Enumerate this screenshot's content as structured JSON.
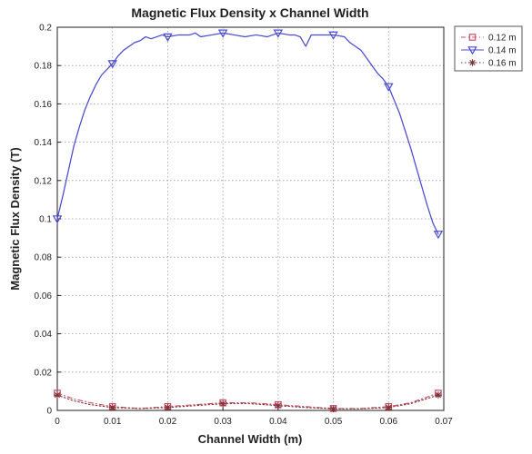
{
  "chart_data": {
    "type": "line",
    "title": "Magnetic Flux Density x Channel Width",
    "xlabel": "Channel Width (m)",
    "ylabel": "Magnetic Flux Density (T)",
    "xlim": [
      0,
      0.07
    ],
    "ylim": [
      0,
      0.2
    ],
    "x_ticks": [
      "0",
      "0.01",
      "0.02",
      "0.03",
      "0.04",
      "0.05",
      "0.06",
      "0.07"
    ],
    "y_ticks": [
      "0",
      "0.02",
      "0.04",
      "0.06",
      "0.08",
      "0.1",
      "0.12",
      "0.14",
      "0.16",
      "0.18",
      "0.2"
    ],
    "grid": true,
    "legend_position": "outside-right-top",
    "series": [
      {
        "name": "0.12 m",
        "color": "#cc4a6a",
        "style": "dash-dot",
        "marker": "square",
        "marker_x": [
          0,
          0.01,
          0.02,
          0.03,
          0.04,
          0.05,
          0.06,
          0.069
        ],
        "points": [
          [
            0,
            0.009
          ],
          [
            0.003,
            0.006
          ],
          [
            0.006,
            0.004
          ],
          [
            0.01,
            0.002
          ],
          [
            0.015,
            0.001
          ],
          [
            0.02,
            0.002
          ],
          [
            0.025,
            0.003
          ],
          [
            0.03,
            0.004
          ],
          [
            0.035,
            0.004
          ],
          [
            0.04,
            0.003
          ],
          [
            0.045,
            0.002
          ],
          [
            0.05,
            0.001
          ],
          [
            0.055,
            0.001
          ],
          [
            0.06,
            0.002
          ],
          [
            0.064,
            0.004
          ],
          [
            0.069,
            0.009
          ]
        ]
      },
      {
        "name": "0.14 m",
        "color": "#4a4ad0",
        "style": "solid",
        "marker": "triangle-down",
        "marker_x": [
          0,
          0.01,
          0.02,
          0.03,
          0.04,
          0.05,
          0.06,
          0.069
        ],
        "points": [
          [
            0,
            0.1
          ],
          [
            0.001,
            0.112
          ],
          [
            0.002,
            0.125
          ],
          [
            0.003,
            0.138
          ],
          [
            0.004,
            0.148
          ],
          [
            0.005,
            0.157
          ],
          [
            0.006,
            0.164
          ],
          [
            0.007,
            0.17
          ],
          [
            0.008,
            0.175
          ],
          [
            0.009,
            0.178
          ],
          [
            0.01,
            0.181
          ],
          [
            0.011,
            0.185
          ],
          [
            0.012,
            0.188
          ],
          [
            0.013,
            0.19
          ],
          [
            0.014,
            0.192
          ],
          [
            0.015,
            0.193
          ],
          [
            0.016,
            0.195
          ],
          [
            0.017,
            0.194
          ],
          [
            0.018,
            0.195
          ],
          [
            0.019,
            0.196
          ],
          [
            0.02,
            0.195
          ],
          [
            0.022,
            0.196
          ],
          [
            0.024,
            0.196
          ],
          [
            0.025,
            0.197
          ],
          [
            0.026,
            0.195
          ],
          [
            0.028,
            0.196
          ],
          [
            0.03,
            0.197
          ],
          [
            0.032,
            0.196
          ],
          [
            0.034,
            0.195
          ],
          [
            0.036,
            0.196
          ],
          [
            0.038,
            0.195
          ],
          [
            0.04,
            0.197
          ],
          [
            0.042,
            0.196
          ],
          [
            0.043,
            0.196
          ],
          [
            0.044,
            0.195
          ],
          [
            0.045,
            0.19
          ],
          [
            0.046,
            0.196
          ],
          [
            0.048,
            0.196
          ],
          [
            0.05,
            0.196
          ],
          [
            0.052,
            0.195
          ],
          [
            0.053,
            0.192
          ],
          [
            0.054,
            0.19
          ],
          [
            0.055,
            0.188
          ],
          [
            0.056,
            0.184
          ],
          [
            0.057,
            0.18
          ],
          [
            0.058,
            0.176
          ],
          [
            0.059,
            0.173
          ],
          [
            0.06,
            0.169
          ],
          [
            0.061,
            0.162
          ],
          [
            0.062,
            0.155
          ],
          [
            0.063,
            0.146
          ],
          [
            0.064,
            0.137
          ],
          [
            0.065,
            0.127
          ],
          [
            0.066,
            0.117
          ],
          [
            0.067,
            0.107
          ],
          [
            0.068,
            0.098
          ],
          [
            0.069,
            0.092
          ]
        ]
      },
      {
        "name": "0.16 m",
        "color": "#7a3333",
        "style": "dotted",
        "marker": "star",
        "marker_x": [
          0,
          0.01,
          0.02,
          0.03,
          0.04,
          0.05,
          0.06,
          0.069
        ],
        "points": [
          [
            0,
            0.008
          ],
          [
            0.003,
            0.005
          ],
          [
            0.006,
            0.003
          ],
          [
            0.01,
            0.0015
          ],
          [
            0.015,
            0.001
          ],
          [
            0.02,
            0.0015
          ],
          [
            0.025,
            0.0025
          ],
          [
            0.03,
            0.0035
          ],
          [
            0.035,
            0.0035
          ],
          [
            0.04,
            0.0025
          ],
          [
            0.045,
            0.0015
          ],
          [
            0.05,
            0.0008
          ],
          [
            0.055,
            0.0008
          ],
          [
            0.06,
            0.0015
          ],
          [
            0.064,
            0.0035
          ],
          [
            0.069,
            0.008
          ]
        ]
      }
    ]
  }
}
